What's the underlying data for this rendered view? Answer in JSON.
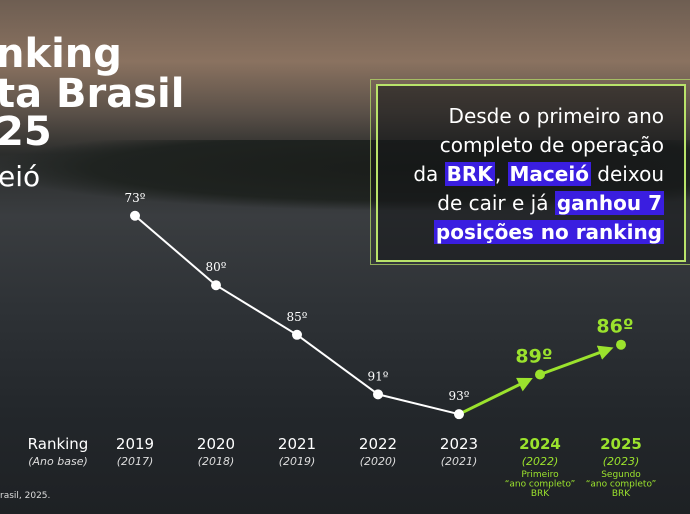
{
  "header": {
    "title_lines": [
      "nking",
      "ta Brasil",
      "25"
    ],
    "subtitle": "eió"
  },
  "callout": {
    "lines": [
      [
        {
          "text": "Desde o primeiro ano"
        }
      ],
      [
        {
          "text": "completo de operação"
        }
      ],
      [
        {
          "text": "da "
        },
        {
          "text": "BRK",
          "highlight": true
        },
        {
          "text": ", "
        },
        {
          "text": "Maceió",
          "highlight": true
        },
        {
          "text": " deixou"
        }
      ],
      [
        {
          "text": "de cair e já "
        },
        {
          "text": "ganhou 7",
          "highlight": true
        }
      ],
      [
        {
          "text": "posições no ranking",
          "highlight": true
        }
      ]
    ]
  },
  "chart_data": {
    "type": "line",
    "axis_label": "Ranking",
    "axis_sublabel": "(Ano base)",
    "categories": [
      "2019",
      "2020",
      "2021",
      "2022",
      "2023",
      "2024",
      "2025"
    ],
    "category_sublabels": [
      "(2017)",
      "(2018)",
      "(2019)",
      "(2020)",
      "(2021)",
      "(2022)",
      "(2023)"
    ],
    "values": [
      73,
      80,
      85,
      91,
      93,
      89,
      86
    ],
    "value_labels": [
      "73º",
      "80º",
      "85º",
      "91º",
      "93º",
      "89º",
      "86º"
    ],
    "point_colors": [
      "#ffffff",
      "#ffffff",
      "#ffffff",
      "#ffffff",
      "#ffffff",
      "#9be22d",
      "#9be22d"
    ],
    "annotations": [
      null,
      null,
      null,
      null,
      null,
      [
        "Primeiro",
        "“ano completo”",
        "BRK"
      ],
      [
        "Segundo",
        "“ano completo”",
        "BRK"
      ]
    ],
    "ylim": [
      70,
      95
    ],
    "y_reversed": true
  },
  "footnote": "rasil, 2025."
}
